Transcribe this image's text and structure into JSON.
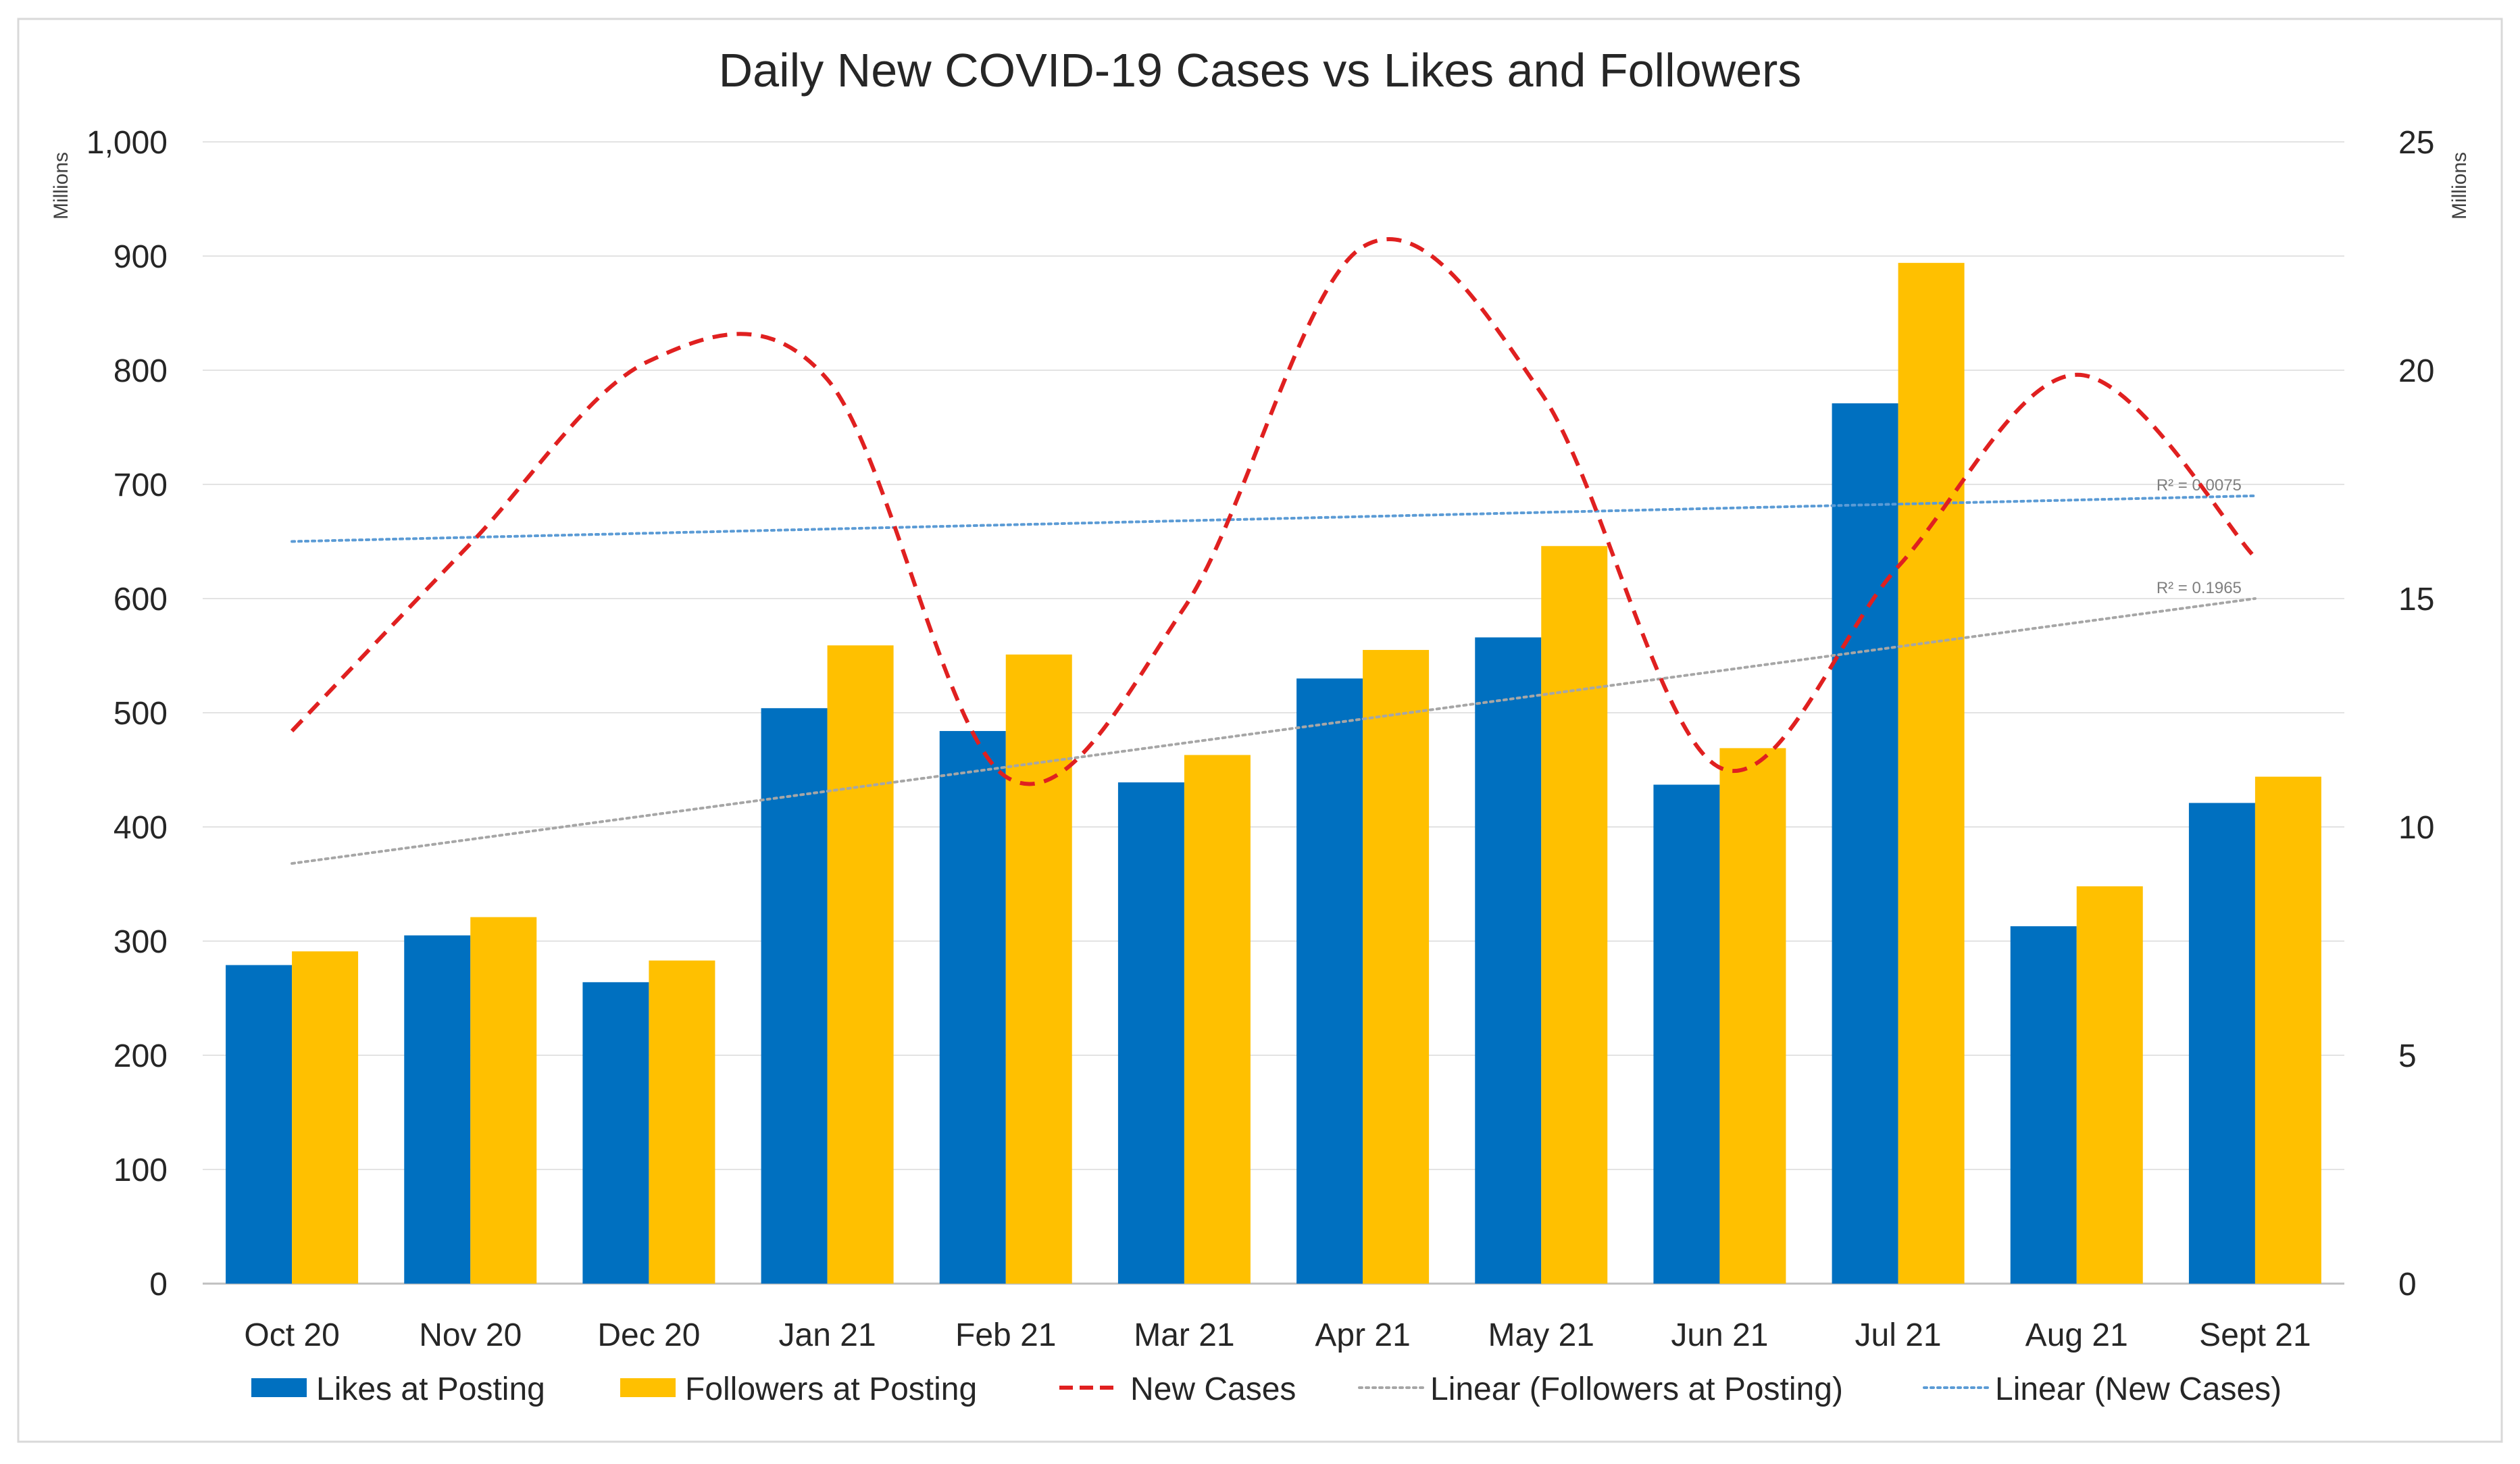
{
  "chart_data": {
    "type": "bar",
    "title": "Daily New COVID-19 Cases vs Likes and Followers",
    "categories": [
      "Oct 20",
      "Nov 20",
      "Dec 20",
      "Jan 21",
      "Feb 21",
      "Mar 21",
      "Apr 21",
      "May 21",
      "Jun 21",
      "Jul 21",
      "Aug 21",
      "Sept 21"
    ],
    "y_left": {
      "unit_label": "Millions",
      "ylim": [
        0,
        1000
      ],
      "ticks": [
        0,
        100,
        200,
        300,
        400,
        500,
        600,
        700,
        800,
        900,
        1000
      ],
      "tick_labels": [
        "0",
        "100",
        "200",
        "300",
        "400",
        "500",
        "600",
        "700",
        "800",
        "900",
        "1,000"
      ]
    },
    "y_right": {
      "unit_label": "Millions",
      "ylim": [
        0,
        25
      ],
      "ticks": [
        0,
        5,
        10,
        15,
        20,
        25
      ],
      "tick_labels": [
        "0",
        "5",
        "10",
        "15",
        "20",
        "25"
      ]
    },
    "series": [
      {
        "name": "Likes at Posting",
        "type": "bar",
        "axis": "left",
        "color": "#0070C0",
        "values": [
          279,
          305,
          264,
          504,
          484,
          439,
          530,
          566,
          437,
          771,
          313,
          421
        ]
      },
      {
        "name": "Followers at Posting",
        "type": "bar",
        "axis": "left",
        "color": "#FFC000",
        "values": [
          291,
          321,
          283,
          559,
          551,
          463,
          555,
          646,
          469,
          894,
          348,
          444
        ]
      },
      {
        "name": "New Cases",
        "type": "line",
        "axis": "right",
        "style": "dashed",
        "color": "#E02020",
        "values": [
          12.1,
          16.2,
          20.2,
          19.8,
          11.1,
          14.8,
          22.7,
          19.5,
          11.3,
          15.7,
          19.9,
          15.9
        ]
      }
    ],
    "trendlines": [
      {
        "name": "Linear (Followers at Posting)",
        "axis": "left",
        "color": "#A6A6A6",
        "style": "dotted",
        "start": 368,
        "end": 600,
        "r2_label": "R² = 0.1965"
      },
      {
        "name": "Linear (New Cases)",
        "axis": "right",
        "color": "#5B9BD5",
        "style": "dotted",
        "start": 16.25,
        "end": 17.25,
        "r2_label": "R² = 0.0075"
      }
    ],
    "legend": {
      "position": "bottom",
      "entries": [
        "Likes at Posting",
        "Followers at Posting",
        "New Cases",
        "Linear (Followers at Posting)",
        "Linear (New Cases)"
      ]
    },
    "grid": true
  }
}
